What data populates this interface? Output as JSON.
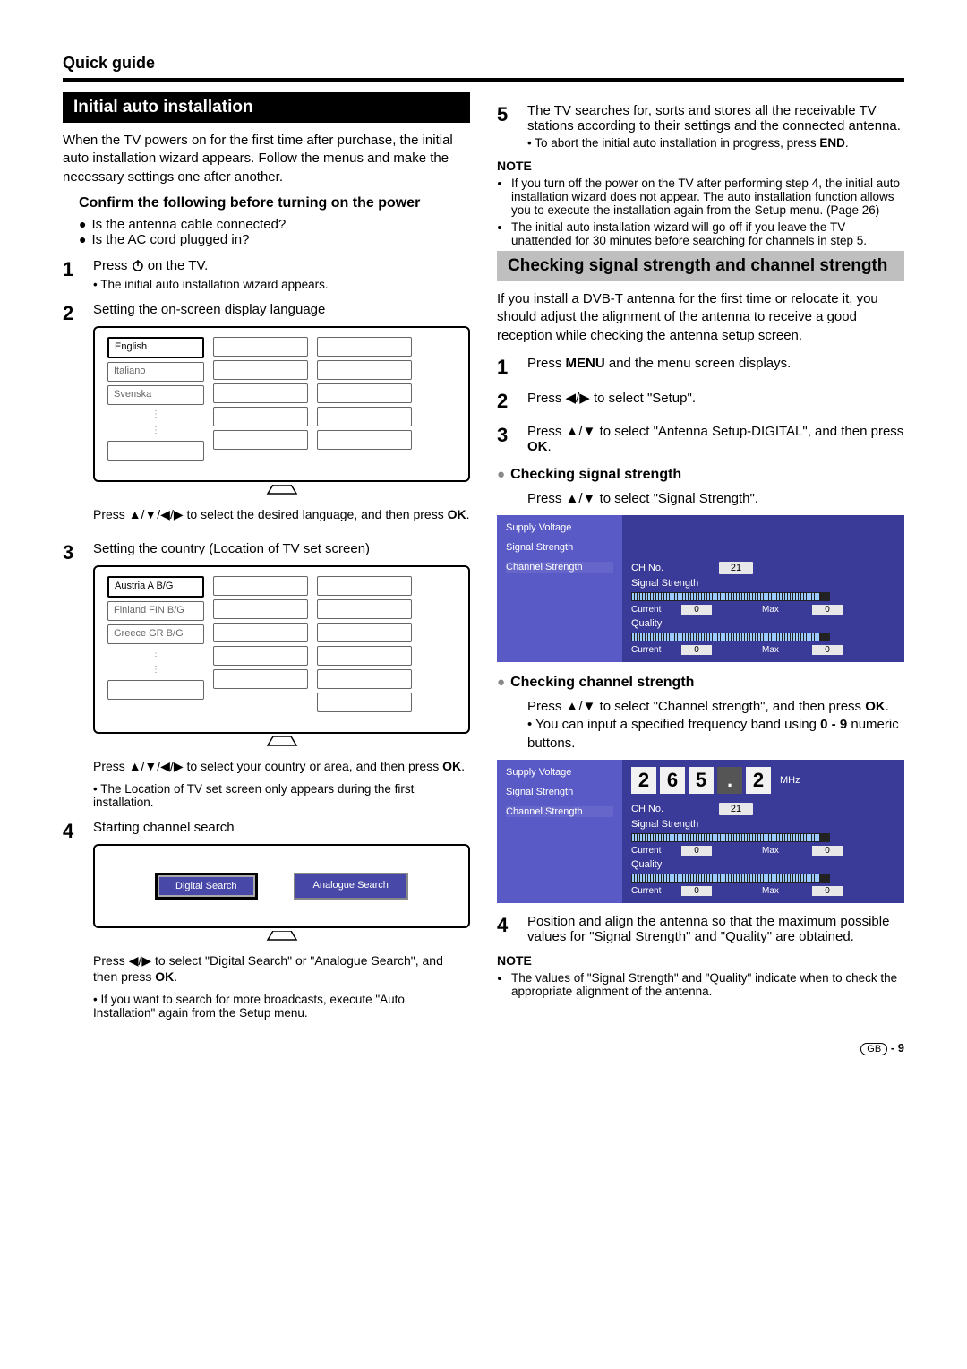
{
  "header": {
    "quick_guide": "Quick guide"
  },
  "left": {
    "title": "Initial auto installation",
    "intro": "When the TV powers on for the first time after purchase, the initial auto installation wizard appears. Follow the menus and make the necessary settings one after another.",
    "confirm_head": "Confirm the following  before turning on the power",
    "confirm_items": [
      "Is the antenna cable connected?",
      "Is the AC cord plugged in?"
    ],
    "step1_a": "Press ",
    "step1_b": " on the TV.",
    "step1_sub": "• The initial auto installation wizard appears.",
    "step2": "Setting the on-screen display language",
    "lang_table": {
      "col1": [
        "English",
        "Italiano",
        "Svenska"
      ],
      "highlight_index": 0
    },
    "step2_after_a": "Press ",
    "step2_after_b": " to select the desired language, and then press ",
    "step3": "Setting the country (Location of TV set screen)",
    "country_table": {
      "col1": [
        "Austria    A    B/G",
        "Finland   FIN  B/G",
        "Greece   GR  B/G"
      ],
      "highlight_index": 0
    },
    "step3_after_a": "Press ",
    "step3_after_b": " to select your country or area, and then press ",
    "step3_sub": "• The Location of TV set screen only appears during the first installation.",
    "step4": "Starting channel search",
    "search": {
      "digital": "Digital Search",
      "analogue": "Analogue Search"
    },
    "step4_after_a": "Press ",
    "step4_after_b": " to select \"Digital Search\" or \"Analogue Search\", and then press ",
    "step4_sub": "• If you want to search for more broadcasts, execute \"Auto Installation\" again from the Setup menu."
  },
  "right": {
    "step5": "The TV searches for, sorts and stores all the receivable TV stations according to their settings and the connected antenna.",
    "step5_sub": "• To abort the initial auto installation in progress, press ",
    "note_label": "NOTE",
    "notes": [
      "If you turn off the power on the TV after performing step 4, the initial auto installation wizard does not appear. The auto installation function allows you to execute the installation again from the Setup menu. (Page 26)",
      "The initial auto installation wizard will go off if you leave the TV unattended for 30 minutes before searching for channels in step 5."
    ],
    "gray_title": "Checking signal strength and channel strength",
    "gray_intro": "If you install a DVB-T antenna for the first time or relocate it, you should adjust the alignment of the antenna to receive a good reception while checking the antenna setup screen.",
    "g1_a": "Press ",
    "g1_b": " and the menu screen displays.",
    "g2_a": "Press ",
    "g2_b": " to select \"Setup\".",
    "g3_a": "Press ",
    "g3_b": " to select \"Antenna Setup-DIGITAL\", and then press ",
    "sig_head": "Checking signal strength",
    "sig_line_a": "Press ",
    "sig_line_b": " to select \"Signal Strength\".",
    "panel": {
      "left_items": [
        "Supply Voltage",
        "Signal Strength",
        "Channel Strength"
      ],
      "ch_no_label": "CH No.",
      "ch_no_val": "21",
      "sig_label": "Signal Strength",
      "qual_label": "Quality",
      "current": "Current",
      "max": "Max",
      "zero": "0"
    },
    "chan_head": "Checking channel strength",
    "chan_line_a": "Press ",
    "chan_line_b": " to select \"Channel strength\", and then press ",
    "chan_sub": "• You can input a specified frequency band using ",
    "chan_sub2": " numeric buttons.",
    "freq": {
      "d1": "2",
      "d2": "6",
      "d3": "5",
      "dot": ".",
      "d4": "2",
      "unit": "MHz"
    },
    "g4": "Position and align the antenna so that the maximum possible values for \"Signal Strength\" and \"Quality\" are obtained.",
    "note2": "The values of \"Signal Strength\" and \"Quality\" indicate when to check the appropriate alignment of the antenna."
  },
  "symbols": {
    "ok": "OK",
    "end": "END",
    "menu": "MENU",
    "ud": "▲/▼",
    "udlr": "▲/▼/◀/▶",
    "lr": "◀/▶",
    "zero_nine": "0 - 9"
  },
  "footer": {
    "gb": "GB",
    "page": "- 9"
  },
  "colors": {
    "panel_left": "#5a5ac6",
    "panel_right": "#3a3a98",
    "gray_bar": "#bfbfbf"
  }
}
